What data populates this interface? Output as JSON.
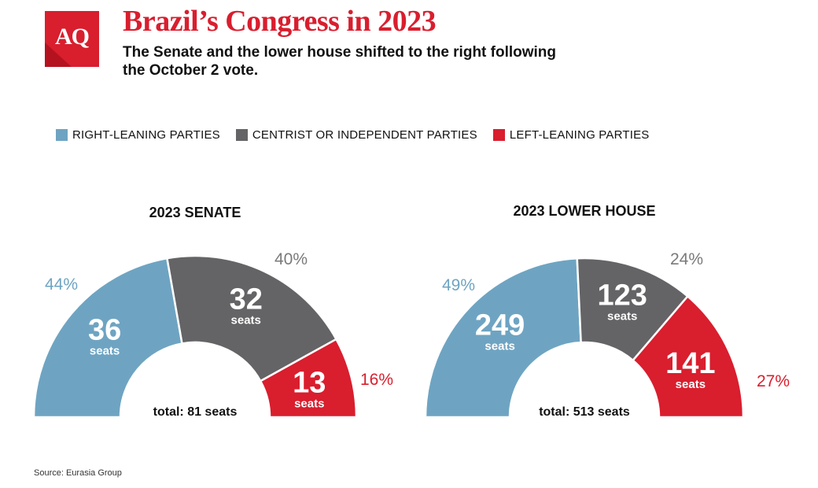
{
  "header": {
    "logo_text": "AQ",
    "title": "Brazil’s Congress in 2023",
    "subtitle": "The Senate and the lower house shifted to the right following the October 2 vote."
  },
  "legend": [
    {
      "label": "RIGHT-LEANING PARTIES",
      "color": "#6ea4c2"
    },
    {
      "label": "CENTRIST OR INDEPENDENT PARTIES",
      "color": "#646466"
    },
    {
      "label": "LEFT-LEANING PARTIES",
      "color": "#d91e2e"
    }
  ],
  "chart_data": [
    {
      "type": "pie",
      "variant": "half-donut",
      "title": "2023 SENATE",
      "total_label": "total: 81 seats",
      "categories": [
        "Right-leaning parties",
        "Centrist or independent parties",
        "Left-leaning parties"
      ],
      "values": [
        36,
        32,
        13
      ],
      "value_labels": [
        "36",
        "32",
        "13"
      ],
      "unit_label": "seats",
      "percent_labels": [
        "44%",
        "40%",
        "16%"
      ],
      "colors": [
        "#6ea4c2",
        "#646466",
        "#d91e2e"
      ]
    },
    {
      "type": "pie",
      "variant": "half-donut",
      "title": "2023 LOWER HOUSE",
      "total_label": "total: 513 seats",
      "categories": [
        "Right-leaning parties",
        "Centrist or independent parties",
        "Left-leaning parties"
      ],
      "values": [
        249,
        123,
        141
      ],
      "value_labels": [
        "249",
        "123",
        "141"
      ],
      "unit_label": "seats",
      "percent_labels": [
        "49%",
        "24%",
        "27%"
      ],
      "colors": [
        "#6ea4c2",
        "#646466",
        "#d91e2e"
      ]
    }
  ],
  "footer": {
    "source": "Source: Eurasia Group"
  }
}
